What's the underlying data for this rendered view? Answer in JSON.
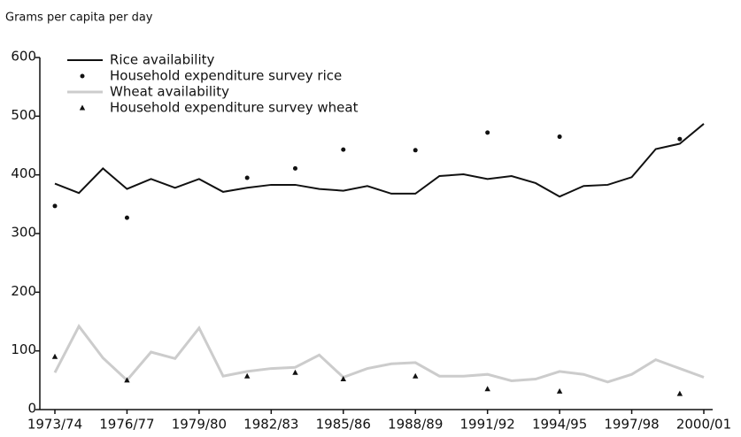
{
  "chart_data": {
    "type": "line",
    "y_label": "Grams per capita per day",
    "categories": [
      "1973/74",
      null,
      null,
      "1976/77",
      null,
      null,
      "1979/80",
      null,
      null,
      "1982/83",
      null,
      null,
      "1985/86",
      null,
      null,
      "1988/89",
      null,
      null,
      "1991/92",
      null,
      null,
      "1994/95",
      null,
      null,
      "1997/98",
      null,
      null,
      "2000/01"
    ],
    "series": [
      {
        "name": "Rice availability",
        "color": "#111111",
        "marker": "line",
        "values": [
          385,
          369,
          411,
          376,
          393,
          378,
          393,
          371,
          378,
          383,
          383,
          376,
          373,
          381,
          368,
          368,
          398,
          401,
          393,
          398,
          386,
          363,
          381,
          383,
          396,
          444,
          453,
          487
        ]
      },
      {
        "name": "Household expenditure survey rice",
        "color": "#111111",
        "marker": "dot",
        "values": [
          347,
          null,
          null,
          327,
          null,
          null,
          null,
          null,
          395,
          null,
          411,
          null,
          443,
          null,
          null,
          442,
          null,
          null,
          472,
          null,
          null,
          465,
          null,
          null,
          null,
          null,
          461,
          null
        ]
      },
      {
        "name": "Wheat availability",
        "color": "#cccccc",
        "marker": "line",
        "values": [
          63,
          142,
          88,
          50,
          98,
          87,
          139,
          57,
          65,
          70,
          72,
          93,
          55,
          70,
          78,
          80,
          57,
          57,
          60,
          49,
          52,
          65,
          60,
          47,
          60,
          85,
          70,
          55
        ]
      },
      {
        "name": "Household expenditure survey wheat",
        "color": "#111111",
        "marker": "triangle",
        "values": [
          90,
          null,
          null,
          50,
          null,
          null,
          null,
          null,
          57,
          null,
          63,
          null,
          52,
          null,
          null,
          57,
          null,
          null,
          35,
          null,
          null,
          31,
          null,
          null,
          null,
          null,
          27,
          null
        ]
      }
    ],
    "ylim": [
      0,
      600
    ],
    "yticks": [
      0,
      100,
      200,
      300,
      400,
      500,
      600
    ],
    "legend": "upper left"
  }
}
